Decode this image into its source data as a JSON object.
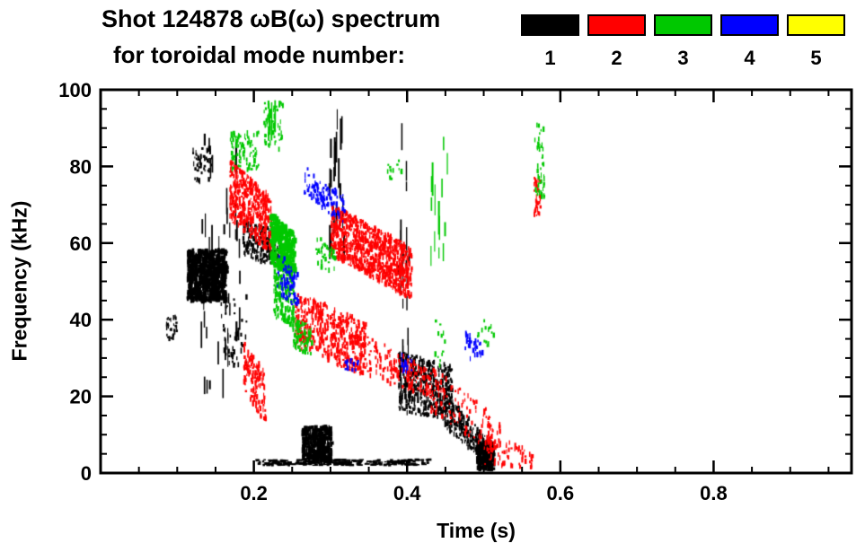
{
  "chart": {
    "title": "Shot 124878 ωB(ω) spectrum",
    "subtitle": "for toroidal mode number:",
    "legend": [
      {
        "label": "1",
        "color": "#000000"
      },
      {
        "label": "2",
        "color": "#ff0000"
      },
      {
        "label": "3",
        "color": "#00c800"
      },
      {
        "label": "4",
        "color": "#0000ff"
      },
      {
        "label": "5",
        "color": "#ffff00"
      }
    ]
  },
  "chart_data": {
    "type": "scatter",
    "title": "Shot 124878 ωB(ω) spectrum for toroidal mode number 1–5",
    "xlabel": "Time (s)",
    "ylabel": "Frequency (kHz)",
    "xlim": [
      0,
      0.98
    ],
    "ylim": [
      0,
      100
    ],
    "grid": false,
    "legend_position": "top-right",
    "x_major_ticks": [
      {
        "v": 0.2,
        "label": "0.2"
      },
      {
        "v": 0.4,
        "label": "0.4"
      },
      {
        "v": 0.6,
        "label": "0.6"
      },
      {
        "v": 0.8,
        "label": "0.8"
      }
    ],
    "x_minor_step": 0.05,
    "y_major_ticks": [
      {
        "v": 0,
        "label": "0"
      },
      {
        "v": 20,
        "label": "20"
      },
      {
        "v": 40,
        "label": "40"
      },
      {
        "v": 60,
        "label": "60"
      },
      {
        "v": 80,
        "label": "80"
      },
      {
        "v": 100,
        "label": "100"
      }
    ],
    "y_minor_step": 5,
    "series": [
      {
        "name": "toroidal mode n=1",
        "color": "#000000",
        "clusters": [
          {
            "style": "blob",
            "t": [
              0.112,
              0.163
            ],
            "f_start": [
              45,
              58
            ],
            "f_end": [
              45,
              58
            ],
            "n": 700
          },
          {
            "style": "streak",
            "t": [
              0.13,
              0.182
            ],
            "f_start": [
              22,
              88
            ],
            "f_end": [
              22,
              88
            ],
            "n": 45
          },
          {
            "style": "dash",
            "t": [
              0.118,
              0.145
            ],
            "f_start": [
              76,
              85
            ],
            "f_end": [
              76,
              85
            ],
            "n": 50
          },
          {
            "style": "dash",
            "t": [
              0.085,
              0.098
            ],
            "f_start": [
              35,
              41
            ],
            "f_end": [
              35,
              41
            ],
            "n": 30
          },
          {
            "style": "dash",
            "t": [
              0.155,
              0.19
            ],
            "f_start": [
              28,
              46
            ],
            "f_end": [
              28,
              46
            ],
            "n": 45
          },
          {
            "style": "dash",
            "t": [
              0.185,
              0.235
            ],
            "f_start": [
              56,
              66
            ],
            "f_end": [
              54,
              63
            ],
            "n": 220
          },
          {
            "style": "streak",
            "t": [
              0.295,
              0.317
            ],
            "f_start": [
              55,
              93
            ],
            "f_end": [
              55,
              93
            ],
            "n": 22
          },
          {
            "style": "streak",
            "t": [
              0.388,
              0.402
            ],
            "f_start": [
              22,
              88
            ],
            "f_end": [
              22,
              88
            ],
            "n": 25
          },
          {
            "style": "blob",
            "t": [
              0.262,
              0.3
            ],
            "f_start": [
              3,
              12
            ],
            "f_end": [
              3,
              12
            ],
            "n": 300
          },
          {
            "style": "hline",
            "t": [
              0.202,
              0.428
            ],
            "f_start": [
              2,
              3.5
            ],
            "f_end": [
              2,
              3.5
            ],
            "n": 260
          },
          {
            "style": "dash",
            "t": [
              0.388,
              0.458
            ],
            "f_start": [
              16,
              32
            ],
            "f_end": [
              14,
              28
            ],
            "n": 450
          },
          {
            "style": "dash",
            "t": [
              0.448,
              0.505
            ],
            "f_start": [
              12,
              21
            ],
            "f_end": [
              2,
              9
            ],
            "n": 220
          },
          {
            "style": "blob",
            "t": [
              0.49,
              0.512
            ],
            "f_start": [
              1,
              8
            ],
            "f_end": [
              1,
              8
            ],
            "n": 160
          }
        ]
      },
      {
        "name": "toroidal mode n=2",
        "color": "#ff0000",
        "clusters": [
          {
            "style": "dash",
            "t": [
              0.168,
              0.222
            ],
            "f_start": [
              66,
              82
            ],
            "f_end": [
              57,
              72
            ],
            "n": 450
          },
          {
            "style": "dash",
            "t": [
              0.186,
              0.215
            ],
            "f_start": [
              22,
              34
            ],
            "f_end": [
              12,
              26
            ],
            "n": 140
          },
          {
            "style": "dash",
            "t": [
              0.3,
              0.405
            ],
            "f_start": [
              57,
              70
            ],
            "f_end": [
              45,
              59
            ],
            "n": 900
          },
          {
            "style": "dash",
            "t": [
              0.253,
              0.345
            ],
            "f_start": [
              33,
              47
            ],
            "f_end": [
              25,
              40
            ],
            "n": 500
          },
          {
            "style": "dash",
            "t": [
              0.345,
              0.43
            ],
            "f_start": [
              25,
              36
            ],
            "f_end": [
              20,
              27
            ],
            "n": 160
          },
          {
            "style": "dash",
            "t": [
              0.43,
              0.52
            ],
            "f_start": [
              16,
              28
            ],
            "f_end": [
              4,
              14
            ],
            "n": 130
          },
          {
            "style": "dash",
            "t": [
              0.5,
              0.565
            ],
            "f_start": [
              2,
              10
            ],
            "f_end": [
              1,
              6
            ],
            "n": 70
          },
          {
            "style": "dash",
            "t": [
              0.565,
              0.573
            ],
            "f_start": [
              67,
              77
            ],
            "f_end": [
              67,
              77
            ],
            "n": 35
          }
        ]
      },
      {
        "name": "toroidal mode n=3",
        "color": "#00c800",
        "clusters": [
          {
            "style": "dash",
            "t": [
              0.168,
              0.205
            ],
            "f_start": [
              79,
              89
            ],
            "f_end": [
              79,
              89
            ],
            "n": 90
          },
          {
            "style": "dash",
            "t": [
              0.212,
              0.237
            ],
            "f_start": [
              84,
              97
            ],
            "f_end": [
              84,
              97
            ],
            "n": 60
          },
          {
            "style": "streak",
            "t": [
              0.215,
              0.233
            ],
            "f_start": [
              84,
              96
            ],
            "f_end": [
              84,
              96
            ],
            "n": 8
          },
          {
            "style": "blob",
            "t": [
              0.22,
              0.252
            ],
            "f_start": [
              55,
              68
            ],
            "f_end": [
              50,
              62
            ],
            "n": 380
          },
          {
            "style": "dash",
            "t": [
              0.225,
              0.252
            ],
            "f_start": [
              40,
              53
            ],
            "f_end": [
              38,
              50
            ],
            "n": 160
          },
          {
            "style": "dash",
            "t": [
              0.25,
              0.275
            ],
            "f_start": [
              33,
              41
            ],
            "f_end": [
              30,
              38
            ],
            "n": 90
          },
          {
            "style": "dash",
            "t": [
              0.28,
              0.305
            ],
            "f_start": [
              54,
              62
            ],
            "f_end": [
              52,
              58
            ],
            "n": 40
          },
          {
            "style": "dash",
            "t": [
              0.37,
              0.392
            ],
            "f_start": [
              76,
              82
            ],
            "f_end": [
              76,
              82
            ],
            "n": 14
          },
          {
            "style": "streak",
            "t": [
              0.428,
              0.452
            ],
            "f_start": [
              55,
              90
            ],
            "f_end": [
              55,
              90
            ],
            "n": 14
          },
          {
            "style": "dash",
            "t": [
              0.43,
              0.45
            ],
            "f_start": [
              28,
              40
            ],
            "f_end": [
              28,
              40
            ],
            "n": 12
          },
          {
            "style": "dash",
            "t": [
              0.49,
              0.512
            ],
            "f_start": [
              33,
              40
            ],
            "f_end": [
              33,
              40
            ],
            "n": 14
          },
          {
            "style": "dash",
            "t": [
              0.566,
              0.578
            ],
            "f_start": [
              72,
              91
            ],
            "f_end": [
              72,
              91
            ],
            "n": 45
          }
        ]
      },
      {
        "name": "toroidal mode n=4",
        "color": "#0000ff",
        "clusters": [
          {
            "style": "dash",
            "t": [
              0.265,
              0.32
            ],
            "f_start": [
              73,
              80
            ],
            "f_end": [
              64,
              72
            ],
            "n": 110
          },
          {
            "style": "dash",
            "t": [
              0.23,
              0.258
            ],
            "f_start": [
              47,
              58
            ],
            "f_end": [
              42,
              52
            ],
            "n": 80
          },
          {
            "style": "dash",
            "t": [
              0.318,
              0.335
            ],
            "f_start": [
              26,
              30
            ],
            "f_end": [
              26,
              30
            ],
            "n": 15
          },
          {
            "style": "dash",
            "t": [
              0.392,
              0.405
            ],
            "f_start": [
              26,
              31
            ],
            "f_end": [
              26,
              31
            ],
            "n": 15
          },
          {
            "style": "dash",
            "t": [
              0.475,
              0.498
            ],
            "f_start": [
              30,
              37
            ],
            "f_end": [
              28,
              34
            ],
            "n": 35
          }
        ]
      },
      {
        "name": "toroidal mode n=5",
        "color": "#ffff00",
        "clusters": []
      }
    ]
  }
}
